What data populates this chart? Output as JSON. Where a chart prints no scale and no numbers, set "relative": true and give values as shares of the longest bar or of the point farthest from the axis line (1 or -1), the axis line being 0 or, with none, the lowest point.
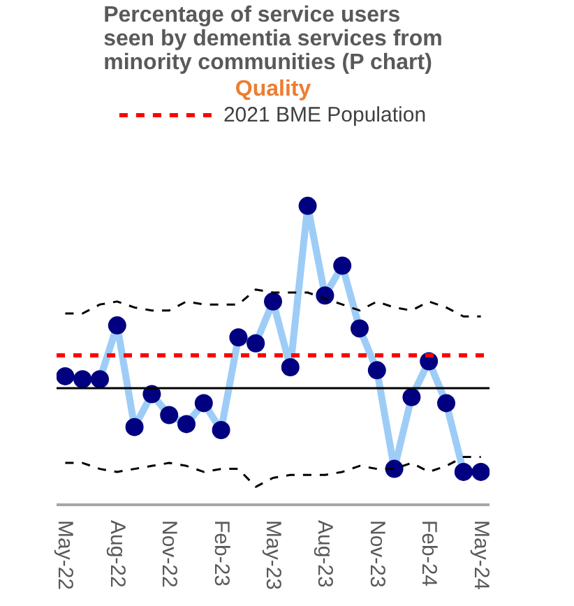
{
  "chart_data": {
    "type": "line",
    "title": "Percentage of service users seen by dementia services from minority communities (P chart)",
    "subtitle": "Quality",
    "relative": true,
    "legend": "top",
    "grid": false,
    "categories": [
      "May-22",
      null,
      null,
      "Aug-22",
      null,
      null,
      "Nov-22",
      null,
      null,
      "Feb-23",
      null,
      null,
      "May-23",
      null,
      null,
      "Aug-23",
      null,
      null,
      "Nov-23",
      null,
      null,
      "Feb-24",
      null,
      null,
      "May-24"
    ],
    "series": [
      {
        "color": "#9dcdf7",
        "values": [
          0.43,
          0.42,
          0.42,
          0.6,
          0.26,
          0.37,
          0.3,
          0.27,
          0.34,
          0.25,
          0.56,
          0.54,
          0.68,
          0.46,
          1.0,
          0.7,
          0.8,
          0.59,
          0.45,
          0.12,
          0.36,
          0.48,
          0.34,
          0.11,
          0.11
        ]
      },
      {
        "type": "scatter",
        "color": "#000080",
        "marker": "circle",
        "values": [
          0.43,
          0.42,
          0.42,
          0.6,
          0.26,
          0.37,
          0.3,
          0.27,
          0.34,
          0.25,
          0.56,
          0.54,
          0.68,
          0.46,
          1.0,
          0.7,
          0.8,
          0.59,
          0.45,
          0.12,
          0.36,
          0.48,
          0.34,
          0.11,
          0.11
        ]
      },
      {
        "type": "line",
        "color": "#000000",
        "line_style": "dashed",
        "values": [
          0.64,
          0.64,
          0.67,
          0.68,
          0.66,
          0.65,
          0.65,
          0.68,
          0.67,
          0.67,
          0.67,
          0.72,
          0.71,
          0.71,
          0.71,
          0.69,
          0.67,
          0.65,
          0.68,
          0.66,
          0.65,
          0.68,
          0.66,
          0.63,
          0.63
        ]
      },
      {
        "type": "line",
        "color": "#000000",
        "line_style": "dashed",
        "values": [
          0.14,
          0.14,
          0.12,
          0.11,
          0.12,
          0.13,
          0.14,
          0.13,
          0.11,
          0.12,
          0.12,
          0.06,
          0.09,
          0.1,
          0.1,
          0.1,
          0.11,
          0.13,
          0.12,
          0.12,
          0.14,
          0.11,
          0.13,
          0.16,
          0.16
        ]
      }
    ],
    "ref_lines": [
      {
        "axis": "y",
        "value": 0.39,
        "color": "#000000",
        "line_style": "solid"
      },
      {
        "axis": "y",
        "value": 0.5,
        "label": "2021 BME Population",
        "color": "#ff0000",
        "line_style": "dashed"
      }
    ]
  }
}
